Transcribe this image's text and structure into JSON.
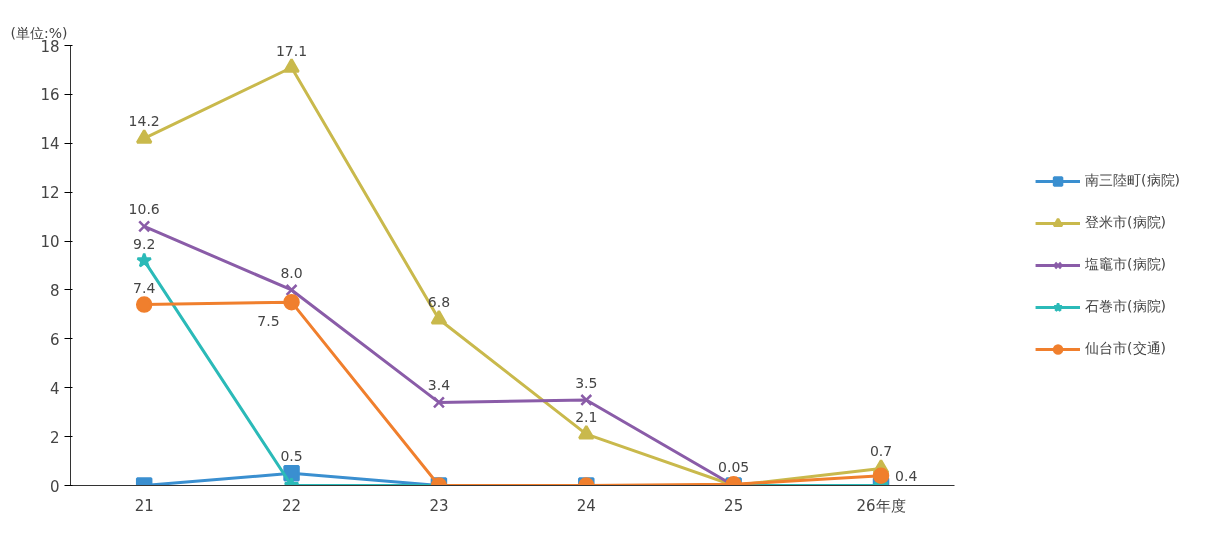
{
  "chart_data": {
    "type": "line",
    "ylabel": "(単位:%)",
    "categories": [
      "21",
      "22",
      "23",
      "24",
      "25",
      "26年度"
    ],
    "ylim": [
      0,
      18
    ],
    "yticks": [
      0,
      2,
      4,
      6,
      8,
      10,
      12,
      14,
      16,
      18
    ],
    "grid": false,
    "legend": "right",
    "series": [
      {
        "name": "南三陸町(病院)",
        "color": "#3a8fd0",
        "marker": "square",
        "values": [
          0,
          0.5,
          0,
          0,
          0,
          0
        ],
        "value_labels": [
          null,
          "0.5",
          null,
          null,
          null,
          null
        ]
      },
      {
        "name": "登米市(病院)",
        "color": "#c9b94c",
        "marker": "triangle",
        "values": [
          14.2,
          17.1,
          6.8,
          2.1,
          0,
          0.7
        ],
        "value_labels": [
          "14.2",
          "17.1",
          "6.8",
          "2.1",
          null,
          "0.7"
        ]
      },
      {
        "name": "塩竈市(病院)",
        "color": "#8a5ca8",
        "marker": "cross",
        "values": [
          10.6,
          8.0,
          3.4,
          3.5,
          0,
          0
        ],
        "value_labels": [
          "10.6",
          "8.0",
          "3.4",
          "3.5",
          null,
          null
        ]
      },
      {
        "name": "石巻市(病院)",
        "color": "#2bbab8",
        "marker": "star",
        "values": [
          9.2,
          0,
          0,
          0,
          0,
          0
        ],
        "value_labels": [
          "9.2",
          null,
          null,
          null,
          null,
          null
        ]
      },
      {
        "name": "仙台市(交通)",
        "color": "#f07f2d",
        "marker": "circle",
        "values": [
          7.4,
          7.5,
          0,
          0,
          0.05,
          0.4
        ],
        "value_labels": [
          "7.4",
          "7.5",
          null,
          null,
          "0.05",
          "0.4"
        ]
      }
    ]
  }
}
